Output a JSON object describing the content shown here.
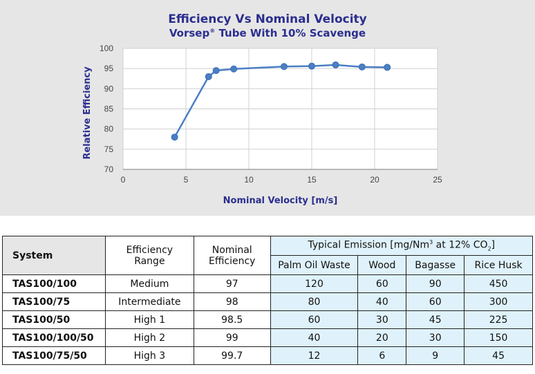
{
  "chart_data": {
    "type": "line",
    "title": "Efficiency Vs Nominal Velocity",
    "subtitle_pre": "Vorsep",
    "subtitle_reg": "®",
    "subtitle_post": " Tube With 10% Scavenge",
    "xlabel": "Nominal Velocity [m/s]",
    "ylabel": "Relative Efficiency",
    "xlim": [
      0,
      25
    ],
    "ylim": [
      70,
      100
    ],
    "xticks": [
      "0",
      "5",
      "10",
      "15",
      "20",
      "25"
    ],
    "yticks": [
      "70",
      "75",
      "80",
      "85",
      "90",
      "95",
      "100"
    ],
    "grid": true,
    "series": [
      {
        "x": [
          4.1,
          6.8,
          7.4,
          8.8,
          12.8,
          15.0,
          16.9,
          19.0,
          21.0
        ],
        "y": [
          78.0,
          93.0,
          94.5,
          94.9,
          95.5,
          95.6,
          95.9,
          95.4,
          95.3
        ]
      }
    ],
    "color": "#4a7fc4"
  },
  "table": {
    "col_system": "System",
    "col_range_1": "Efficiency",
    "col_range_2": "Range",
    "col_nominal_1": "Nominal",
    "col_nominal_2": "Efficiency",
    "emission_pre": "Typical Emission [mg/Nm",
    "emission_sup": "3",
    "emission_mid": " at 12% CO",
    "emission_sub": "2",
    "emission_post": "]",
    "sub_cols": [
      "Palm Oil Waste",
      "Wood",
      "Bagasse",
      "Rice Husk"
    ],
    "rows": [
      {
        "system": "TAS100/100",
        "range": "Medium",
        "nominal": "97",
        "values": [
          "120",
          "60",
          "90",
          "450"
        ]
      },
      {
        "system": "TAS100/75",
        "range": "Intermediate",
        "nominal": "98",
        "values": [
          "80",
          "40",
          "60",
          "300"
        ]
      },
      {
        "system": "TAS100/50",
        "range": "High 1",
        "nominal": "98.5",
        "values": [
          "60",
          "30",
          "45",
          "225"
        ]
      },
      {
        "system": "TAS100/100/50",
        "range": "High 2",
        "nominal": "99",
        "values": [
          "40",
          "20",
          "30",
          "150"
        ]
      },
      {
        "system": "TAS100/75/50",
        "range": "High 3",
        "nominal": "99.7",
        "values": [
          "12",
          "6",
          "9",
          "45"
        ]
      }
    ]
  }
}
